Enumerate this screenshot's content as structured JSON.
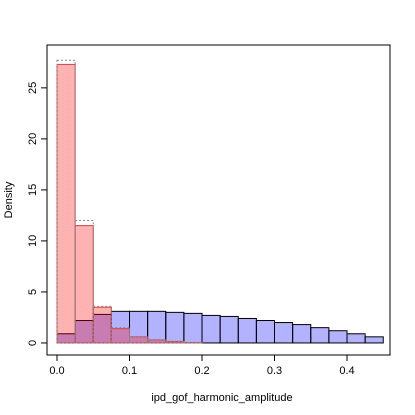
{
  "chart_data": {
    "type": "histogram",
    "x_label": "ipd_gof_harmonic_amplitude",
    "y_label": "Density",
    "bins": [
      0,
      0.025,
      0.05,
      0.075,
      0.1,
      0.125,
      0.15,
      0.175,
      0.2,
      0.225,
      0.25,
      0.275,
      0.3,
      0.325,
      0.35,
      0.375,
      0.4,
      0.425,
      0.45
    ],
    "series": [
      {
        "color": "#0000ff",
        "opacity": 0.3,
        "border": "#000000",
        "dash": "none",
        "values": [
          0.9,
          2.2,
          2.8,
          3.1,
          3.1,
          3.1,
          3.0,
          2.9,
          2.7,
          2.6,
          2.4,
          2.2,
          2.0,
          1.8,
          1.5,
          1.2,
          0.9,
          0.6
        ]
      },
      {
        "color": "#ff0000",
        "opacity": 0.3,
        "border": "#cc4444",
        "dash": "none",
        "values": [
          27.3,
          11.5,
          3.5,
          1.4,
          0.6,
          0.3,
          0.15,
          0.05,
          0,
          0,
          0,
          0,
          0,
          0,
          0,
          0,
          0,
          0
        ]
      },
      {
        "color": "none",
        "opacity": 0,
        "border": "#888888",
        "dash": "2,2",
        "values": [
          27.7,
          12.0,
          3.6,
          1.5,
          0.6,
          0.3,
          0.15,
          0.05,
          0,
          0,
          0,
          0,
          0,
          0,
          0,
          0,
          0,
          0
        ]
      }
    ],
    "xlim": [
      -0.0138,
      0.4593
    ],
    "ylim": [
      -1.18,
      29.2
    ],
    "xticks": [
      {
        "value": 0,
        "label": "0.0"
      },
      0.1,
      0.2,
      0.3,
      0.4
    ],
    "yticks": [
      0,
      5,
      10,
      15,
      20,
      25
    ]
  }
}
